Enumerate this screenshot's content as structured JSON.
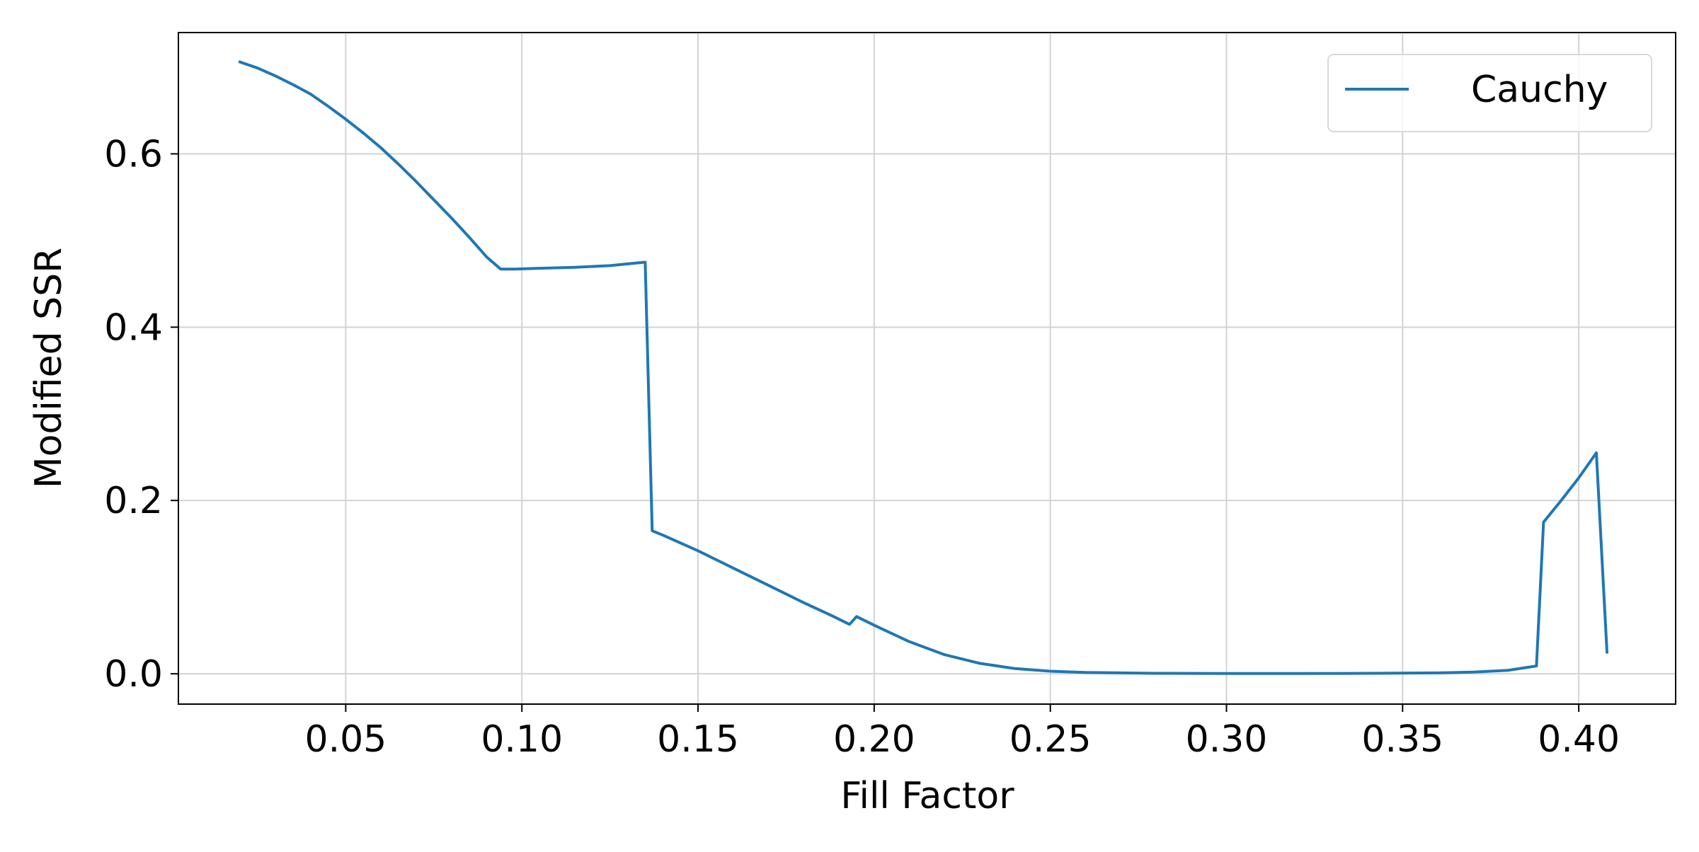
{
  "chart_data": {
    "type": "line",
    "title": "",
    "xlabel": "Fill Factor",
    "ylabel": "Modified SSR",
    "xlim": [
      0.0025,
      0.4275
    ],
    "ylim": [
      -0.035,
      0.74
    ],
    "xticks": [
      0.05,
      0.1,
      0.15,
      0.2,
      0.25,
      0.3,
      0.35,
      0.4
    ],
    "xtick_labels": [
      "0.05",
      "0.10",
      "0.15",
      "0.20",
      "0.25",
      "0.30",
      "0.35",
      "0.40"
    ],
    "yticks": [
      0.0,
      0.2,
      0.4,
      0.6
    ],
    "ytick_labels": [
      "0.0",
      "0.2",
      "0.4",
      "0.6"
    ],
    "grid": true,
    "legend": {
      "location": "upper right",
      "entries": [
        "Cauchy"
      ]
    },
    "series": [
      {
        "name": "Cauchy",
        "color": "#1f77b4",
        "points": [
          [
            0.02,
            0.706
          ],
          [
            0.025,
            0.699
          ],
          [
            0.03,
            0.69
          ],
          [
            0.035,
            0.68
          ],
          [
            0.04,
            0.669
          ],
          [
            0.045,
            0.655
          ],
          [
            0.05,
            0.64
          ],
          [
            0.055,
            0.624
          ],
          [
            0.06,
            0.607
          ],
          [
            0.065,
            0.588
          ],
          [
            0.07,
            0.568
          ],
          [
            0.075,
            0.547
          ],
          [
            0.08,
            0.526
          ],
          [
            0.085,
            0.504
          ],
          [
            0.09,
            0.481
          ],
          [
            0.094,
            0.467
          ],
          [
            0.098,
            0.467
          ],
          [
            0.105,
            0.468
          ],
          [
            0.115,
            0.469
          ],
          [
            0.125,
            0.471
          ],
          [
            0.13,
            0.473
          ],
          [
            0.135,
            0.475
          ],
          [
            0.137,
            0.165
          ],
          [
            0.14,
            0.16
          ],
          [
            0.15,
            0.142
          ],
          [
            0.16,
            0.122
          ],
          [
            0.17,
            0.102
          ],
          [
            0.18,
            0.082
          ],
          [
            0.188,
            0.067
          ],
          [
            0.193,
            0.057
          ],
          [
            0.195,
            0.066
          ],
          [
            0.2,
            0.056
          ],
          [
            0.21,
            0.037
          ],
          [
            0.22,
            0.022
          ],
          [
            0.23,
            0.012
          ],
          [
            0.24,
            0.006
          ],
          [
            0.25,
            0.003
          ],
          [
            0.26,
            0.0015
          ],
          [
            0.28,
            0.0005
          ],
          [
            0.3,
            0.0003
          ],
          [
            0.32,
            0.0003
          ],
          [
            0.34,
            0.0005
          ],
          [
            0.36,
            0.001
          ],
          [
            0.37,
            0.002
          ],
          [
            0.38,
            0.004
          ],
          [
            0.388,
            0.009
          ],
          [
            0.39,
            0.175
          ],
          [
            0.395,
            0.2
          ],
          [
            0.4,
            0.226
          ],
          [
            0.405,
            0.255
          ],
          [
            0.408,
            0.025
          ]
        ]
      }
    ]
  }
}
